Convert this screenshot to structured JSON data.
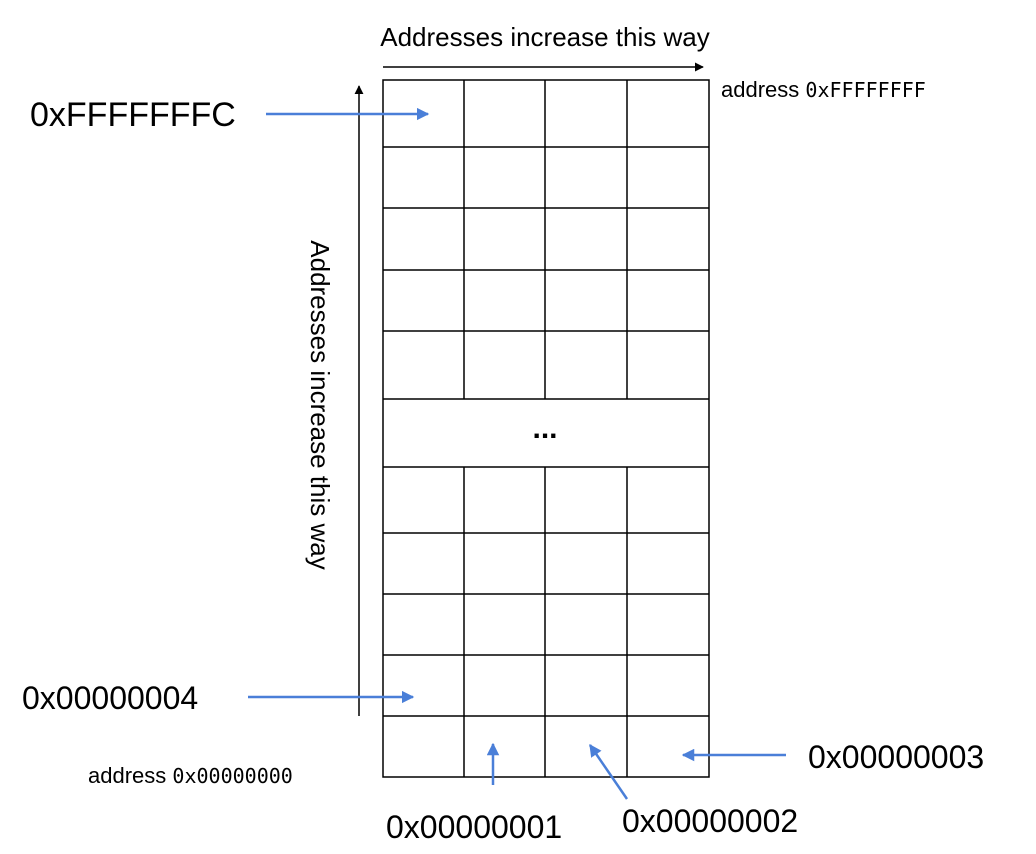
{
  "top_axis": {
    "label": "Addresses increase this way"
  },
  "side_axis": {
    "label": "Addresses increase this way"
  },
  "top_address": {
    "word": "address",
    "value": "0xFFFFFFFF"
  },
  "bottom_address": {
    "word": "address",
    "value": "0x00000000"
  },
  "ellipsis": "...",
  "pointers": {
    "top_word": "0xFFFFFFFC",
    "word_4": "0x00000004",
    "byte_1": "0x00000001",
    "byte_2": "0x00000002",
    "byte_3": "0x00000003"
  },
  "grid": {
    "columns": 4,
    "rows_above_gap": 5,
    "rows_below_gap": 5
  },
  "colors": {
    "arrow_blue": "#4a7fd8",
    "line_black": "#000000"
  }
}
